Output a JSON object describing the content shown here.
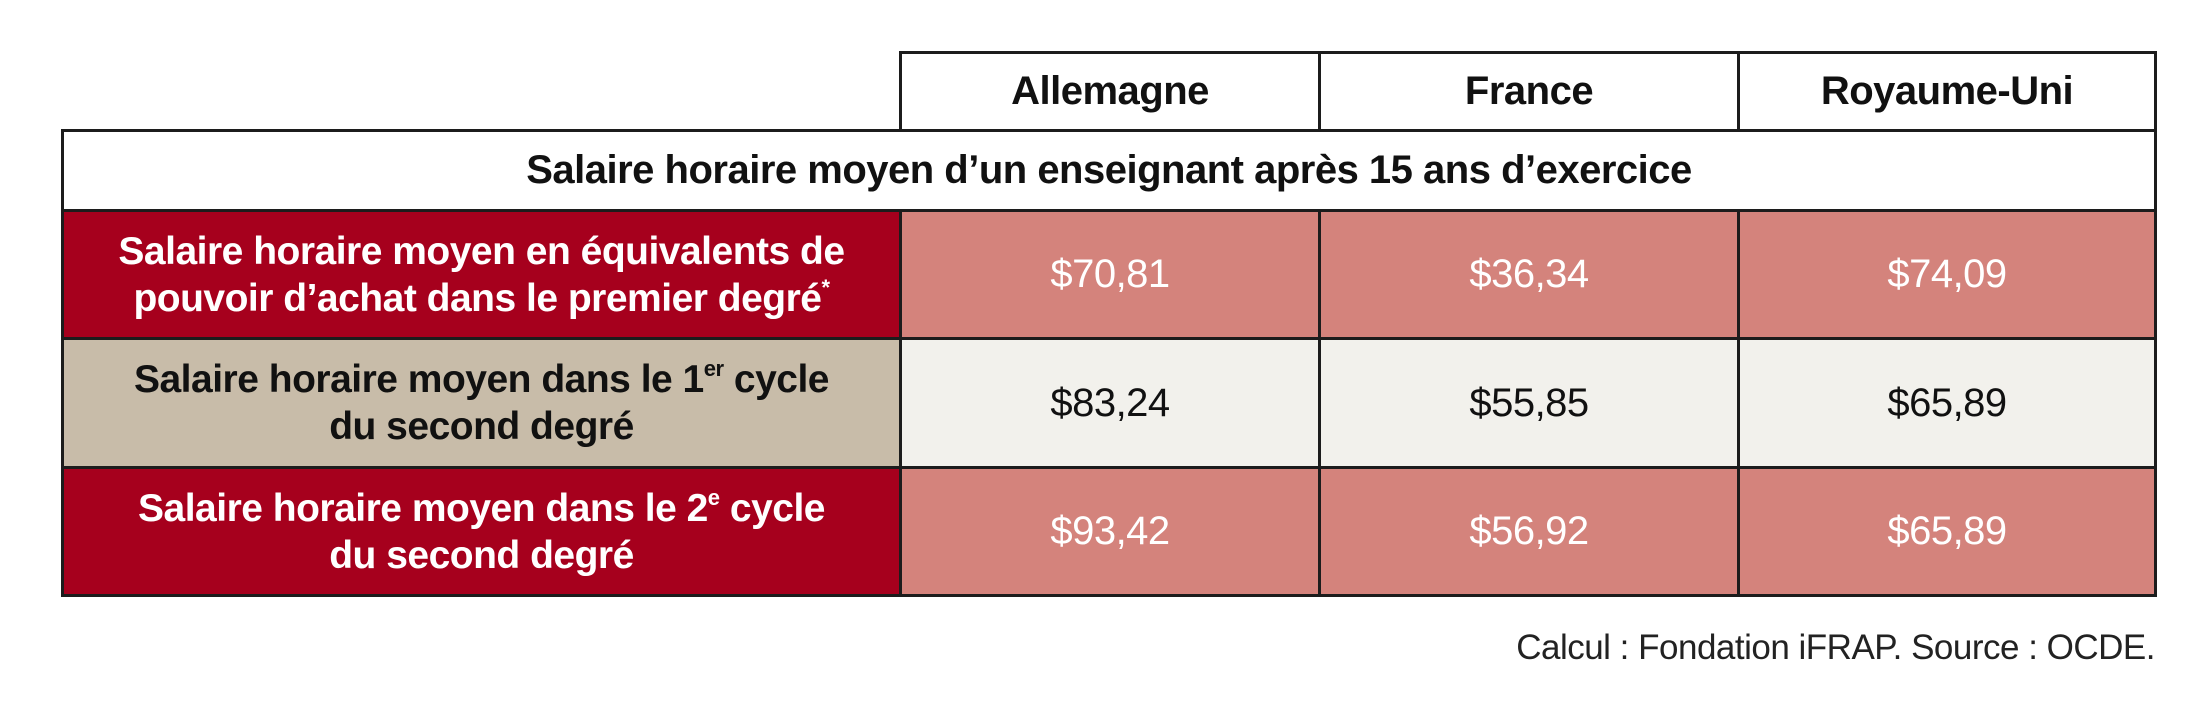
{
  "chart_data": {
    "type": "table",
    "columns": [
      "Allemagne",
      "France",
      "Royaume-Uni"
    ],
    "section_title": "Salaire horaire moyen d’un enseignant après 15 ans d’exercice",
    "rows": [
      {
        "label_line1": "Salaire horaire moyen en équivalents de",
        "label_line2": "pouvoir d’achat dans le premier degré",
        "label_sup": "*",
        "values": [
          "$70,81",
          "$36,34",
          "$74,09"
        ],
        "label_bg": "#a6001d",
        "label_color": "#ffffff",
        "value_bg": "#d4837c",
        "value_color": "#ffffff"
      },
      {
        "label_line1_pre": "Salaire horaire moyen dans le 1",
        "label_line1_sup": "er",
        "label_line1_post": " cycle",
        "label_line2": "du second degré",
        "values": [
          "$83,24",
          "$55,85",
          "$65,89"
        ],
        "label_bg": "#c8bca9",
        "label_color": "#111111",
        "value_bg": "#f2f1ec",
        "value_color": "#111111"
      },
      {
        "label_line1_pre": "Salaire horaire moyen dans le 2",
        "label_line1_sup": "e",
        "label_line1_post": " cycle",
        "label_line2": "du second degré",
        "values": [
          "$93,42",
          "$56,92",
          "$65,89"
        ],
        "label_bg": "#a6001d",
        "label_color": "#ffffff",
        "value_bg": "#d4837c",
        "value_color": "#ffffff"
      }
    ],
    "source": "Calcul : Fondation iFRAP. Source : OCDE."
  }
}
